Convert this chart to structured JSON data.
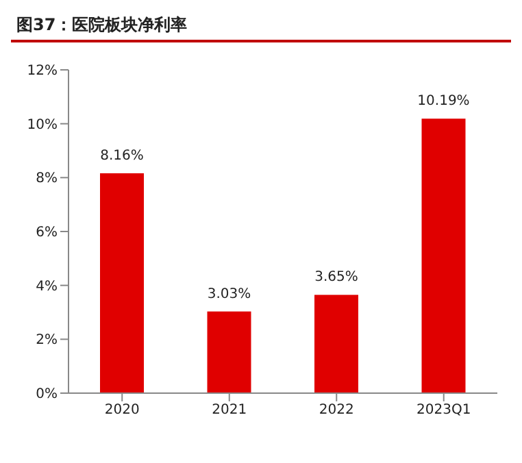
{
  "chart_data": {
    "type": "bar",
    "title": "图37：医院板块净利率",
    "categories": [
      "2020",
      "2021",
      "2022",
      "2023Q1"
    ],
    "values": [
      8.16,
      3.03,
      3.65,
      10.19
    ],
    "value_labels": [
      "8.16%",
      "3.03%",
      "3.65%",
      "10.19%"
    ],
    "color": "#e00000",
    "ylim": [
      0,
      12
    ],
    "yticks": [
      {
        "value": 0,
        "label": "0%"
      },
      {
        "value": 2,
        "label": "2%"
      },
      {
        "value": 4,
        "label": "4%"
      },
      {
        "value": 6,
        "label": "6%"
      },
      {
        "value": 8,
        "label": "8%"
      },
      {
        "value": 10,
        "label": "10%"
      },
      {
        "value": 12,
        "label": "12%"
      }
    ]
  }
}
